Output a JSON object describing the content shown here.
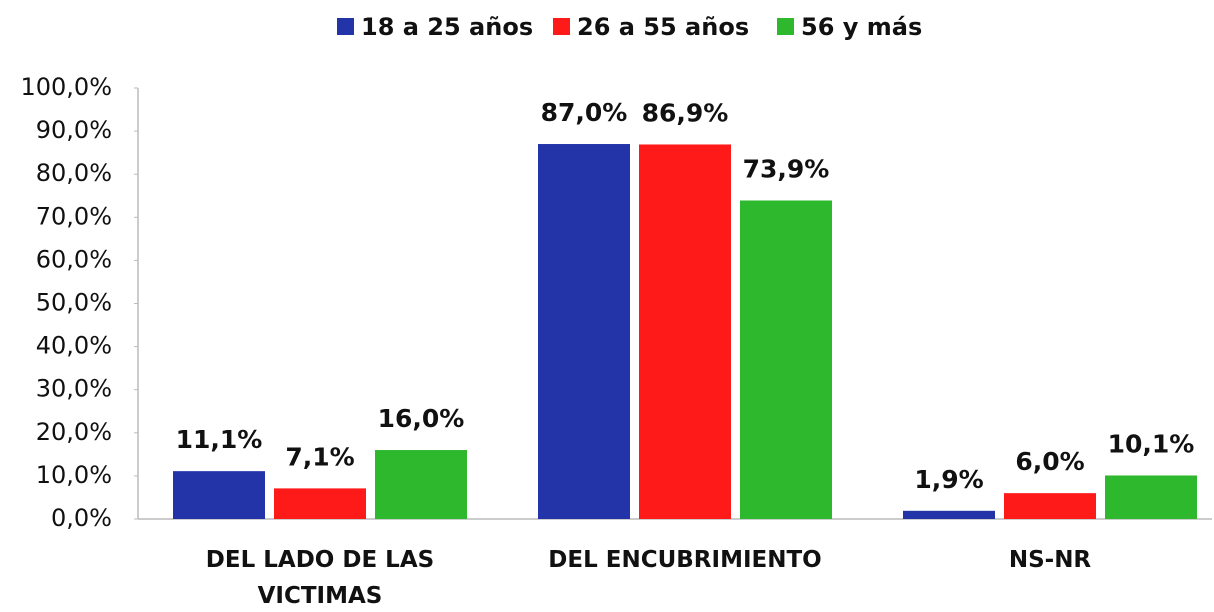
{
  "chart_data": {
    "type": "bar",
    "categories": [
      "DEL LADO DE LAS VICTIMAS",
      "DEL ENCUBRIMIENTO",
      "NS-NR"
    ],
    "series": [
      {
        "name": "18 a 25 años",
        "color": "#2234a8",
        "values": [
          11.1,
          87.0,
          1.9
        ],
        "value_labels": [
          "11,1%",
          "87,0%",
          "1,9%"
        ]
      },
      {
        "name": "26 a 55 años",
        "color": "#ff1a1a",
        "values": [
          7.1,
          86.9,
          6.0
        ],
        "value_labels": [
          "7,1%",
          "86,9%",
          "6,0%"
        ]
      },
      {
        "name": "56 y más",
        "color": "#2db82d",
        "values": [
          16.0,
          73.9,
          10.1
        ],
        "value_labels": [
          "16,0%",
          "73,9%",
          "10,1%"
        ]
      }
    ],
    "ylim": [
      0,
      100
    ],
    "yticks": [
      {
        "value": 0,
        "label": "0,0%"
      },
      {
        "value": 10,
        "label": "10,0%"
      },
      {
        "value": 20,
        "label": "20,0%"
      },
      {
        "value": 30,
        "label": "30,0%"
      },
      {
        "value": 40,
        "label": "40,0%"
      },
      {
        "value": 50,
        "label": "50,0%"
      },
      {
        "value": 60,
        "label": "60,0%"
      },
      {
        "value": 70,
        "label": "70,0%"
      },
      {
        "value": 80,
        "label": "80,0%"
      },
      {
        "value": 90,
        "label": "90,0%"
      },
      {
        "value": 100,
        "label": "100,0%"
      }
    ],
    "grid": false,
    "legend": "top"
  }
}
